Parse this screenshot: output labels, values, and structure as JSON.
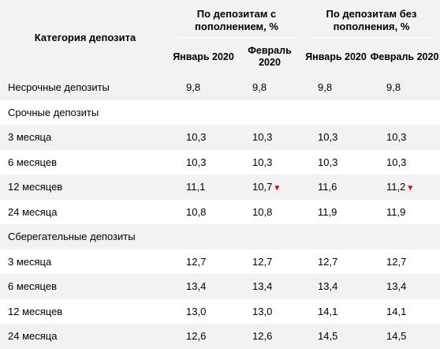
{
  "header": {
    "category_label": "Категория депозита",
    "group1_label": "По депозитам с пополнением, %",
    "group2_label": "По депозитам без пополнения, %",
    "sub_columns": [
      "Январь 2020",
      "Февраль 2020",
      "Январь 2020",
      "Февраль 2020"
    ]
  },
  "rows": [
    {
      "label": "Несрочные депозиты",
      "values": [
        "9,8",
        "9,8",
        "9,8",
        "9,8"
      ]
    },
    {
      "label": "Срочные депозиты",
      "values": [
        "",
        "",
        "",
        ""
      ]
    },
    {
      "label": "3 месяца",
      "values": [
        "10,3",
        "10,3",
        "10,3",
        "10,3"
      ]
    },
    {
      "label": "6 месяцев",
      "values": [
        "10,3",
        "10,3",
        "10,3",
        "10,3"
      ]
    },
    {
      "label": "12 месяцев",
      "values": [
        "11,1",
        "10,7",
        "11,6",
        "11,2"
      ],
      "down": [
        false,
        true,
        false,
        true
      ]
    },
    {
      "label": "24 месяца",
      "values": [
        "10,8",
        "10,8",
        "11,9",
        "11,9"
      ]
    },
    {
      "label": "Сберегательные депозиты",
      "values": [
        "",
        "",
        "",
        ""
      ]
    },
    {
      "label": "3 месяца",
      "values": [
        "12,7",
        "12,7",
        "12,7",
        "12,7"
      ]
    },
    {
      "label": "6 месяцев",
      "values": [
        "13,4",
        "13,4",
        "13,4",
        "13,4"
      ]
    },
    {
      "label": "12 месяцев",
      "values": [
        "13,0",
        "13,0",
        "14,1",
        "14,1"
      ]
    },
    {
      "label": "24 месяца",
      "values": [
        "12,6",
        "12,6",
        "14,5",
        "14,5"
      ]
    }
  ],
  "icons": {
    "decrease": "down-triangle-icon"
  },
  "colors": {
    "header_bg": "#f2f2f2",
    "stripe_bg": "#f2f2f2",
    "decrease": "#e00000"
  }
}
